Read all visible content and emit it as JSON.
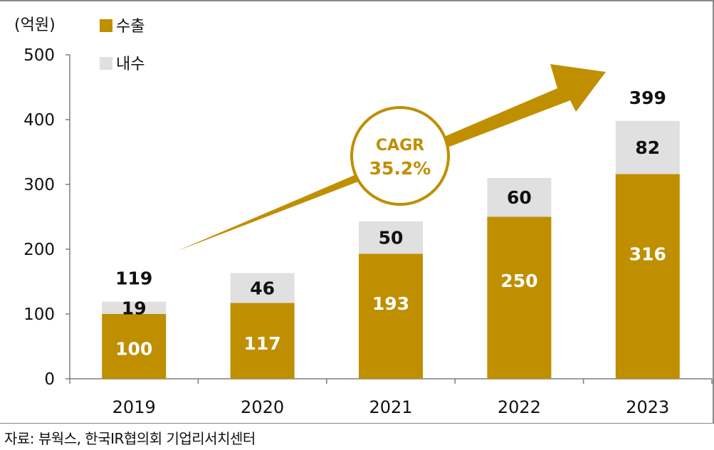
{
  "chart_data": {
    "type": "bar",
    "stacked": true,
    "unit_label": "(억원)",
    "categories": [
      "2019",
      "2020",
      "2021",
      "2022",
      "2023"
    ],
    "series": [
      {
        "name": "수출",
        "color": "#bf8f00",
        "values": [
          100,
          117,
          193,
          250,
          316
        ]
      },
      {
        "name": "내수",
        "color": "#e0e0e0",
        "values": [
          19,
          46,
          50,
          60,
          82
        ]
      }
    ],
    "totals": {
      "2019": "119",
      "2023": "399"
    },
    "yticks": [
      0,
      100,
      200,
      300,
      400,
      500
    ],
    "ylim": [
      0,
      500
    ],
    "legend_position": "top-left",
    "annotation": {
      "line1": "CAGR",
      "line2": "35.2%"
    }
  },
  "source": "자료: 뷰웍스, 한국IR협의회 기업리서치센터"
}
